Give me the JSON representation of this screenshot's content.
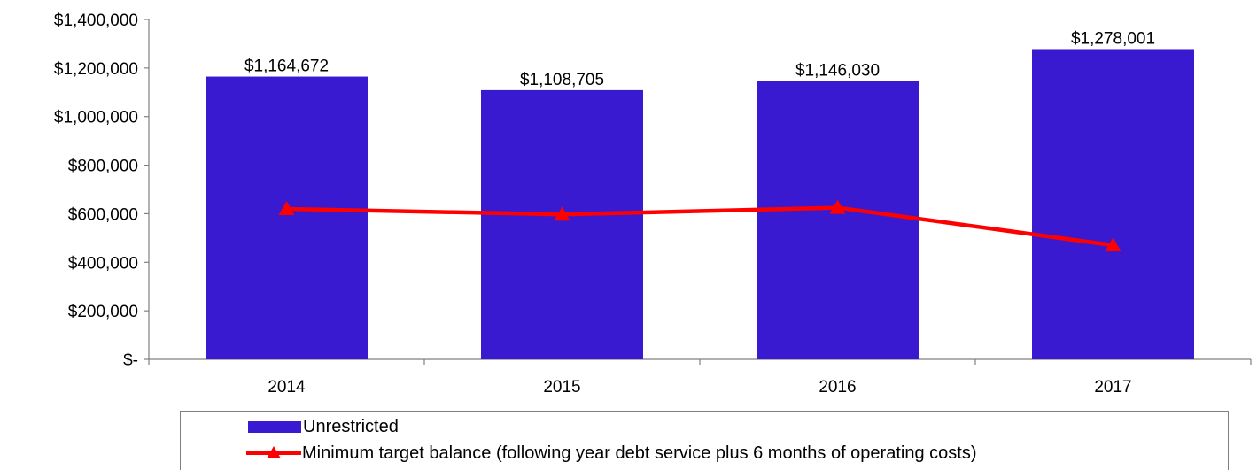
{
  "chart_data": {
    "type": "bar",
    "categories": [
      "2014",
      "2015",
      "2016",
      "2017"
    ],
    "ylim": [
      0,
      1400000
    ],
    "yticks": [
      0,
      200000,
      400000,
      600000,
      800000,
      1000000,
      1200000,
      1400000
    ],
    "ytick_labels": [
      "$-",
      "$200,000",
      "$400,000",
      "$600,000",
      "$800,000",
      "$1,000,000",
      "$1,200,000",
      "$1,400,000"
    ],
    "grid": false,
    "legend_position": "bottom",
    "series": [
      {
        "name": "Unrestricted",
        "type": "bar",
        "color": "#3a1ad1",
        "values": [
          1164672,
          1108705,
          1146030,
          1278001
        ],
        "labels": [
          "$1,164,672",
          "$1,108,705",
          "$1,146,030",
          "$1,278,001"
        ]
      },
      {
        "name": "Minimum target balance (following year debt service plus 6 months of operating costs)",
        "type": "line",
        "marker": "triangle",
        "color": "#ff0000",
        "values": [
          620000,
          597000,
          625000,
          470000
        ]
      }
    ]
  }
}
